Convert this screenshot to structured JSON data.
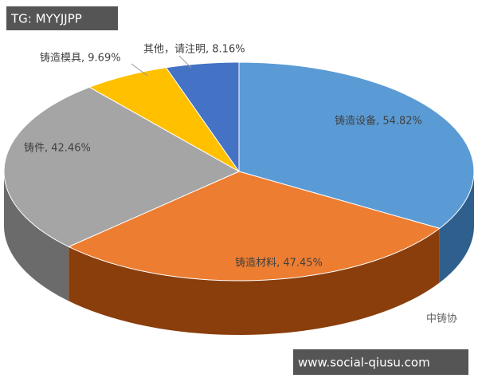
{
  "chart_data": {
    "type": "pie3d",
    "values": [
      54.82,
      47.45,
      42.46,
      9.69,
      8.16
    ],
    "value_labels": [
      "铸造设备, 54.82%",
      "铸造材料, 47.45%",
      "铸件, 42.46%",
      "铸造模具, 9.69%",
      "其他，请注明, 8.16%"
    ],
    "colors": [
      "#5b9bd5",
      "#ed7d31",
      "#a5a5a5",
      "#ffc000",
      "#4472c4"
    ],
    "side_colors": [
      "#2f5f8c",
      "#8a3e0c",
      "#6b6b6b",
      "#a87f00",
      "#2a4a85"
    ]
  },
  "watermarks": {
    "top": "TG: MYYJJPP",
    "bottom": "www.social-qiusu.com",
    "logo": "中铸协"
  }
}
